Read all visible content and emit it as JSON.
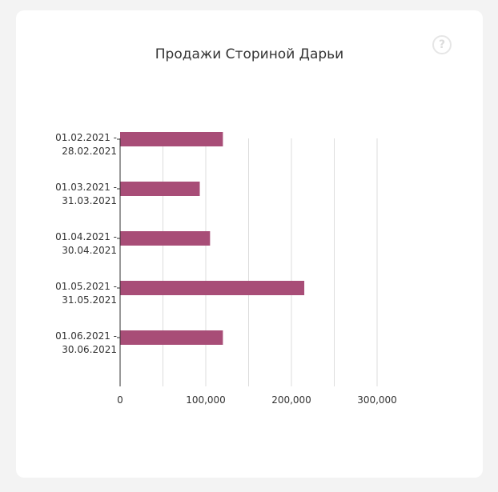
{
  "chart_data": {
    "type": "bar",
    "orientation": "horizontal",
    "title": "Продажи Сториной Дарьи",
    "categories": [
      [
        "01.02.2021 -",
        "28.02.2021"
      ],
      [
        "01.03.2021 -",
        "31.03.2021"
      ],
      [
        "01.04.2021 -",
        "30.04.2021"
      ],
      [
        "01.05.2021 -",
        "31.05.2021"
      ],
      [
        "01.06.2021 -",
        "30.06.2021"
      ]
    ],
    "values": [
      120000,
      93000,
      105000,
      215000,
      120000
    ],
    "xlim": [
      0,
      300000
    ],
    "xticks": [
      0,
      100000,
      200000,
      300000
    ],
    "xtick_labels": [
      "0",
      "100,000",
      "200,000",
      "300,000"
    ],
    "minor_gridlines": [
      50000,
      150000,
      250000
    ],
    "grid": true,
    "bar_color": "#a84d77",
    "legend": "none"
  },
  "help_icon": {
    "glyph": "?"
  },
  "colors": {
    "background": "#f3f3f3",
    "card": "#ffffff",
    "grid": "#dddddd",
    "axis": "#333333"
  }
}
